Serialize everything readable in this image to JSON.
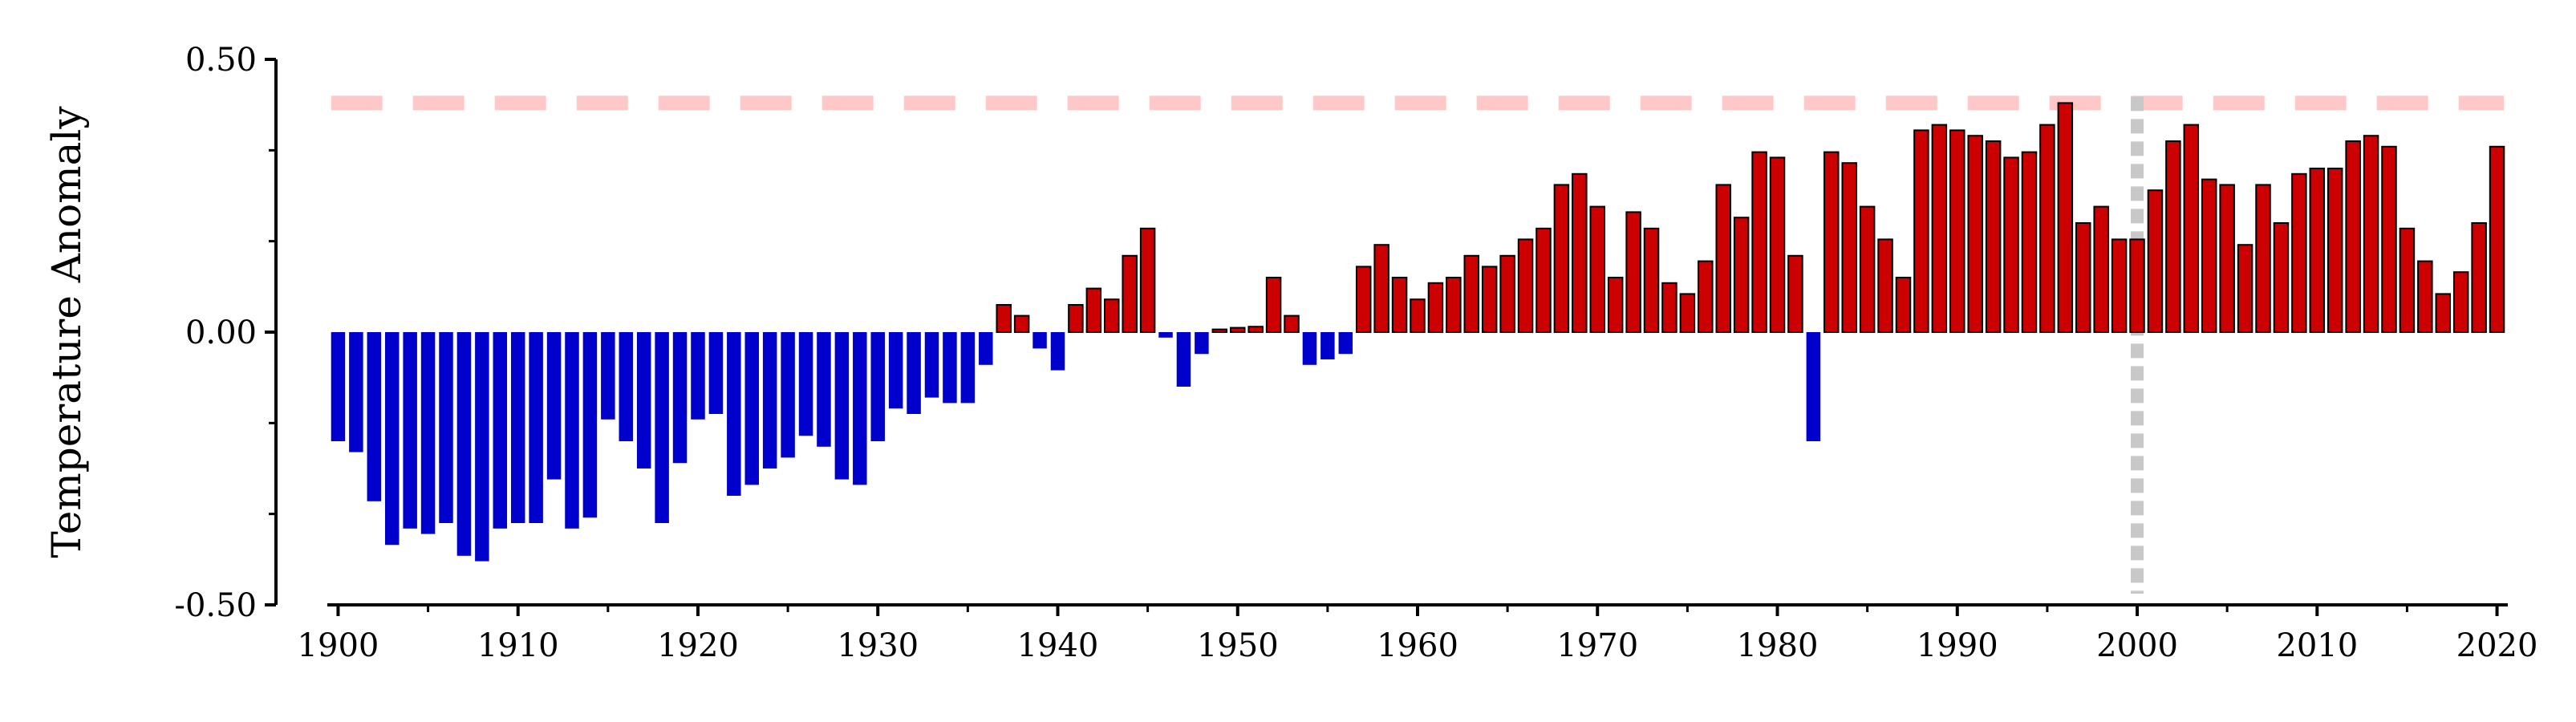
{
  "chart_data": {
    "type": "bar",
    "title": "",
    "xlabel": "",
    "ylabel": "Temperature Anomaly",
    "ylim": [
      -0.5,
      0.5
    ],
    "xlim": [
      1899.4,
      2020.6
    ],
    "x_ticks": [
      1900,
      1910,
      1920,
      1930,
      1940,
      1950,
      1960,
      1970,
      1980,
      1990,
      2000,
      2010,
      2020
    ],
    "y_ticks": [
      0.5,
      0.0,
      -0.5
    ],
    "y_tick_labels": [
      "0.50",
      "0.00",
      "-0.50"
    ],
    "grid": false,
    "legend": "none",
    "colors": {
      "positive": "#cc0000",
      "negative": "#0000cc",
      "reference_line": "#ffc8c8",
      "marker_line": "#c8c8c8"
    },
    "reference_line_y": 0.42,
    "marker_line_x": 2000,
    "years": [
      1900,
      1901,
      1902,
      1903,
      1904,
      1905,
      1906,
      1907,
      1908,
      1909,
      1910,
      1911,
      1912,
      1913,
      1914,
      1915,
      1916,
      1917,
      1918,
      1919,
      1920,
      1921,
      1922,
      1923,
      1924,
      1925,
      1926,
      1927,
      1928,
      1929,
      1930,
      1931,
      1932,
      1933,
      1934,
      1935,
      1936,
      1937,
      1938,
      1939,
      1940,
      1941,
      1942,
      1943,
      1944,
      1945,
      1946,
      1947,
      1948,
      1949,
      1950,
      1951,
      1952,
      1953,
      1954,
      1955,
      1956,
      1957,
      1958,
      1959,
      1960,
      1961,
      1962,
      1963,
      1964,
      1965,
      1966,
      1967,
      1968,
      1969,
      1970,
      1971,
      1972,
      1973,
      1974,
      1975,
      1976,
      1977,
      1978,
      1979,
      1980,
      1981,
      1982,
      1983,
      1984,
      1985,
      1986,
      1987,
      1988,
      1989,
      1990,
      1991,
      1992,
      1993,
      1994,
      1995,
      1996,
      1997,
      1998,
      1999,
      2000,
      2001,
      2002,
      2003,
      2004,
      2005,
      2006,
      2007,
      2008,
      2009,
      2010,
      2011,
      2012,
      2013,
      2014,
      2015,
      2016,
      2017,
      2018,
      2019,
      2020
    ],
    "values": [
      -0.2,
      -0.22,
      -0.31,
      -0.39,
      -0.36,
      -0.37,
      -0.35,
      -0.41,
      -0.42,
      -0.36,
      -0.35,
      -0.35,
      -0.27,
      -0.36,
      -0.34,
      -0.16,
      -0.2,
      -0.25,
      -0.35,
      -0.24,
      -0.16,
      -0.15,
      -0.3,
      -0.28,
      -0.25,
      -0.23,
      -0.19,
      -0.21,
      -0.27,
      -0.28,
      -0.2,
      -0.14,
      -0.15,
      -0.12,
      -0.13,
      -0.13,
      -0.06,
      0.05,
      0.03,
      -0.03,
      -0.07,
      0.05,
      0.08,
      0.06,
      0.14,
      0.19,
      -0.01,
      -0.1,
      -0.04,
      0.005,
      0.008,
      0.01,
      0.1,
      0.03,
      -0.06,
      -0.05,
      -0.04,
      0.12,
      0.16,
      0.1,
      0.06,
      0.09,
      0.1,
      0.14,
      0.12,
      0.14,
      0.17,
      0.19,
      0.27,
      0.29,
      0.23,
      0.1,
      0.22,
      0.19,
      0.09,
      0.07,
      0.13,
      0.27,
      0.21,
      0.33,
      0.32,
      0.14,
      -0.2,
      0.33,
      0.31,
      0.23,
      0.17,
      0.1,
      0.37,
      0.38,
      0.37,
      0.36,
      0.35,
      0.32,
      0.33,
      0.38,
      0.42,
      0.2,
      0.23,
      0.17,
      0.17,
      0.26,
      0.35,
      0.38,
      0.28,
      0.27,
      0.16,
      0.27,
      0.2,
      0.29,
      0.3,
      0.3,
      0.35,
      0.36,
      0.34,
      0.19,
      0.13,
      0.07,
      0.11,
      0.2,
      0.34
    ]
  }
}
